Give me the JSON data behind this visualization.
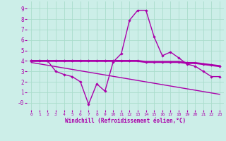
{
  "xlabel": "Windchill (Refroidissement éolien,°C)",
  "bg_color": "#cceee8",
  "grid_color": "#aaddcc",
  "line_color": "#aa00aa",
  "xlim": [
    -0.5,
    23.5
  ],
  "ylim": [
    -0.7,
    9.7
  ],
  "xticks": [
    0,
    1,
    2,
    3,
    4,
    5,
    6,
    7,
    8,
    9,
    10,
    11,
    12,
    13,
    14,
    15,
    16,
    17,
    18,
    19,
    20,
    21,
    22,
    23
  ],
  "yticks": [
    0,
    1,
    2,
    3,
    4,
    5,
    6,
    7,
    8,
    9
  ],
  "ytick_labels": [
    "-0",
    "1",
    "2",
    "3",
    "4",
    "5",
    "6",
    "7",
    "8",
    "9"
  ],
  "line1_x": [
    0,
    1,
    2,
    3,
    4,
    5,
    6,
    7,
    8,
    9,
    10,
    11,
    12,
    13,
    14,
    15,
    16,
    17,
    18,
    19,
    20,
    21,
    22,
    23
  ],
  "line1_y": [
    4.0,
    4.0,
    4.0,
    4.0,
    4.0,
    4.0,
    4.0,
    4.0,
    4.0,
    4.0,
    4.0,
    4.0,
    4.0,
    4.0,
    3.9,
    3.9,
    3.9,
    3.9,
    3.9,
    3.8,
    3.8,
    3.7,
    3.6,
    3.5
  ],
  "line2_x": [
    0,
    1,
    2,
    3,
    4,
    5,
    6,
    7,
    8,
    9,
    10,
    11,
    12,
    13,
    14,
    15,
    16,
    17,
    18,
    19,
    20,
    21,
    22,
    23
  ],
  "line2_y": [
    4.0,
    4.0,
    4.0,
    3.0,
    2.7,
    2.5,
    2.0,
    -0.15,
    1.8,
    1.1,
    3.9,
    4.7,
    7.9,
    8.85,
    8.85,
    6.3,
    4.5,
    4.85,
    4.3,
    3.7,
    3.5,
    3.0,
    2.5,
    2.5
  ],
  "line3_x": [
    0,
    23
  ],
  "line3_y": [
    3.85,
    0.8
  ]
}
